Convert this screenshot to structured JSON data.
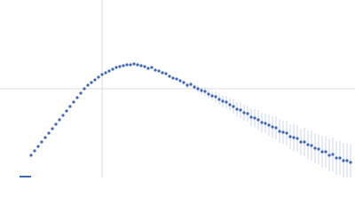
{
  "chart_data": {
    "type": "scatter",
    "x": [
      35,
      39,
      43,
      47,
      51,
      55,
      59,
      63,
      67,
      71,
      75,
      79,
      83,
      87,
      91,
      95,
      99,
      103,
      107,
      111,
      115,
      119,
      123,
      127,
      131,
      135,
      139,
      143,
      147,
      151,
      155,
      159,
      163,
      167,
      171,
      175,
      179,
      183,
      187,
      191,
      195,
      199,
      203,
      207,
      211,
      215,
      219,
      223,
      227,
      231,
      235,
      239,
      243,
      247,
      251,
      255,
      259,
      263,
      267,
      271,
      275,
      279,
      283,
      287,
      291,
      295,
      299,
      303,
      307,
      311,
      315,
      319,
      323,
      327,
      331,
      335,
      339,
      343,
      347,
      351,
      355,
      359,
      363,
      367,
      371,
      375,
      379,
      383,
      387,
      391,
      395
    ],
    "series": [
      {
        "color": "#3a67b8",
        "error_color": "#b3c4e6",
        "values": [
          25,
          30,
          35,
          40,
          45,
          50,
          55,
          60,
          65,
          70,
          75,
          80,
          85,
          90,
          95,
          100,
          104,
          107,
          110,
          113,
          116,
          118,
          120,
          122,
          124,
          125,
          126,
          127,
          127,
          128,
          127,
          126,
          125,
          123,
          124,
          121,
          120,
          118,
          117,
          114,
          112,
          111,
          109,
          107,
          104,
          105,
          102,
          100,
          98,
          97,
          94,
          92,
          91,
          88,
          86,
          85,
          82,
          80,
          77,
          76,
          73,
          72,
          68,
          67,
          65,
          62,
          61,
          59,
          57,
          56,
          52,
          51,
          50,
          46,
          45,
          44,
          40,
          40,
          37,
          36,
          33,
          32,
          29,
          29,
          25,
          26,
          22,
          22,
          19,
          19,
          17
        ],
        "errors": [
          1,
          1,
          1,
          1,
          1,
          1,
          1,
          1,
          1,
          1,
          1,
          1,
          1,
          1,
          1,
          1,
          1,
          1,
          1,
          1,
          1,
          1,
          1,
          1,
          1,
          1,
          1,
          1,
          1,
          1,
          1,
          1,
          1,
          1,
          1,
          1,
          1,
          1,
          1,
          1,
          1,
          1,
          2,
          2,
          3,
          3,
          3,
          4,
          4,
          5,
          5,
          5,
          6,
          6,
          7,
          7,
          7,
          8,
          8,
          9,
          9,
          9,
          10,
          10,
          11,
          11,
          11,
          12,
          12,
          13,
          13,
          13,
          14,
          14,
          15,
          15,
          15,
          16,
          16,
          17,
          17,
          17,
          18,
          18,
          18,
          19,
          19,
          19,
          20,
          20,
          20
        ]
      }
    ],
    "xlim": [
      0,
      400
    ],
    "ylim": [
      0,
      200
    ],
    "xticks": [
      115
    ],
    "yticks": [
      100
    ],
    "grid": true
  }
}
